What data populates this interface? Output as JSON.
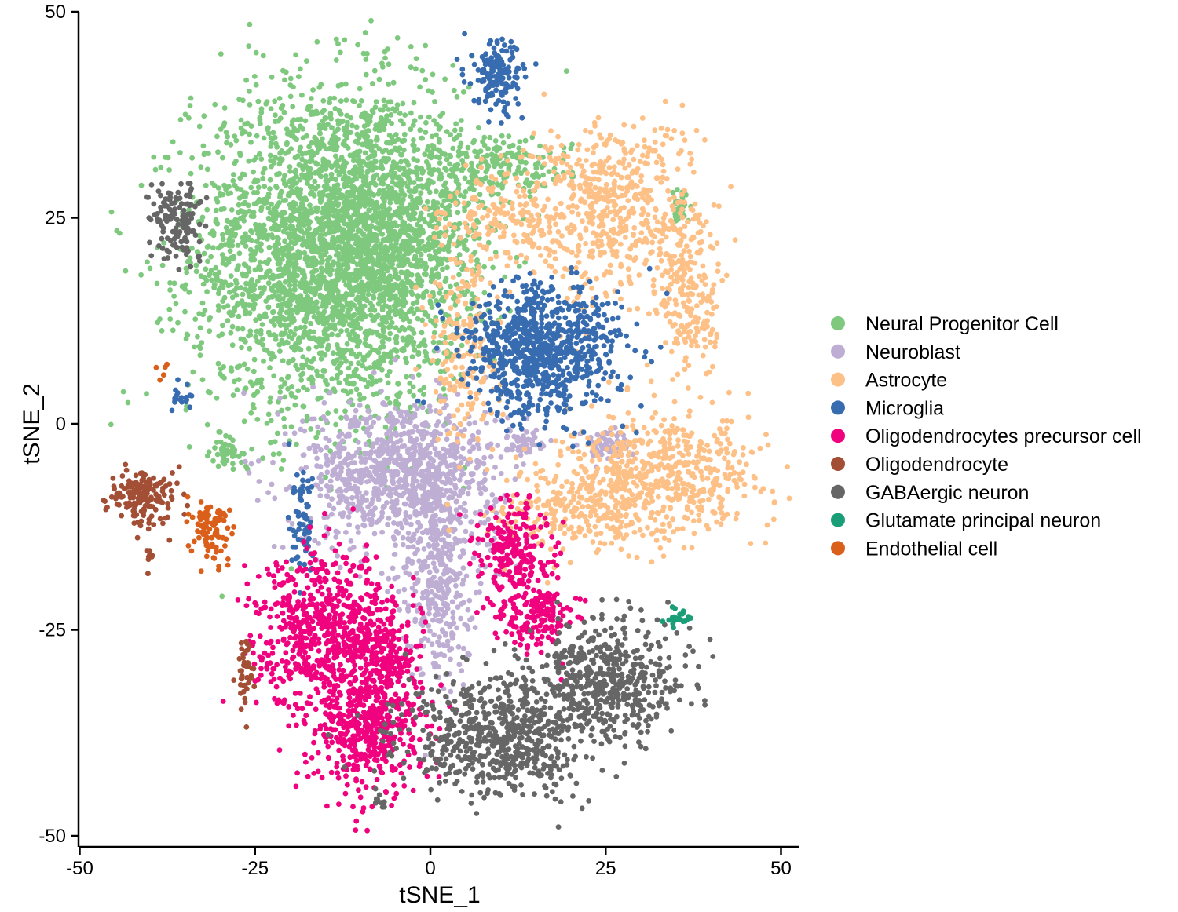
{
  "chart_data": {
    "type": "scatter",
    "title": "",
    "xlabel": "tSNE_1",
    "ylabel": "tSNE_2",
    "xlim": [
      -51,
      52
    ],
    "ylim": [
      -51,
      50
    ],
    "x_ticks": [
      -50,
      -25,
      0,
      25,
      50
    ],
    "y_ticks": [
      -50,
      -25,
      0,
      25,
      50
    ],
    "x_tick_labels": [
      "-50",
      "-25",
      "0",
      "25",
      "50"
    ],
    "y_tick_labels": [
      "-50",
      "-25",
      "0",
      "25",
      "50"
    ],
    "grid": false,
    "legend_position": "right",
    "series": [
      {
        "name": "Neural Progenitor Cell",
        "color": "#7FC97F",
        "clusters": [
          {
            "cx": -15,
            "cy": 21,
            "sx": 9.5,
            "sy": 10,
            "n": 2800
          },
          {
            "cx": -5,
            "cy": 22,
            "sx": 6,
            "sy": 8,
            "n": 900
          },
          {
            "cx": 10,
            "cy": 31,
            "sx": 5,
            "sy": 1.8,
            "n": 180
          },
          {
            "cx": -29,
            "cy": -3.5,
            "sx": 1.2,
            "sy": 0.8,
            "n": 40
          },
          {
            "cx": 35.5,
            "cy": 26,
            "sx": 0.5,
            "sy": 1,
            "n": 30
          }
        ]
      },
      {
        "name": "Neuroblast",
        "color": "#BEAED4",
        "clusters": [
          {
            "cx": -4,
            "cy": -6,
            "sx": 7,
            "sy": 4.5,
            "n": 1000
          },
          {
            "cx": 1,
            "cy": -19,
            "sx": 2.5,
            "sy": 6,
            "n": 350
          },
          {
            "cx": 13.5,
            "cy": -2,
            "sx": 1.4,
            "sy": 0.9,
            "n": 45
          },
          {
            "cx": 25,
            "cy": -2.5,
            "sx": 1.8,
            "sy": 0.9,
            "n": 60
          }
        ]
      },
      {
        "name": "Astrocyte",
        "color": "#FDC086",
        "clusters": [
          {
            "cx": 25,
            "cy": 26,
            "sx": 6,
            "sy": 5.5,
            "n": 550
          },
          {
            "cx": 37,
            "cy": 16,
            "sx": 2.5,
            "sy": 6,
            "n": 240
          },
          {
            "cx": 34,
            "cy": -6,
            "sx": 7,
            "sy": 3.5,
            "n": 500
          },
          {
            "cx": 22,
            "cy": -10,
            "sx": 6,
            "sy": 3,
            "n": 300
          },
          {
            "cx": 5,
            "cy": 10,
            "sx": 2.5,
            "sy": 7,
            "n": 200
          },
          {
            "cx": 10,
            "cy": 25,
            "sx": 4,
            "sy": 3,
            "n": 140
          }
        ]
      },
      {
        "name": "Microglia",
        "color": "#386CB0",
        "clusters": [
          {
            "cx": 16,
            "cy": 9,
            "sx": 5.5,
            "sy": 4,
            "n": 850
          },
          {
            "cx": 9.5,
            "cy": 42,
            "sx": 1.8,
            "sy": 2.2,
            "n": 160
          },
          {
            "cx": -18,
            "cy": -12,
            "sx": 1,
            "sy": 3,
            "n": 70
          },
          {
            "cx": -35,
            "cy": 3,
            "sx": 1,
            "sy": 0.8,
            "n": 20
          }
        ]
      },
      {
        "name": "Oligodendrocytes precursor cell",
        "color": "#F0027F",
        "clusters": [
          {
            "cx": -15,
            "cy": -25,
            "sx": 5,
            "sy": 4.5,
            "n": 650
          },
          {
            "cx": -9,
            "cy": -37,
            "sx": 4,
            "sy": 4,
            "n": 450
          },
          {
            "cx": -6,
            "cy": -29,
            "sx": 2.5,
            "sy": 4,
            "n": 200
          },
          {
            "cx": 12,
            "cy": -15,
            "sx": 2.5,
            "sy": 2.8,
            "n": 200
          },
          {
            "cx": 15,
            "cy": -23,
            "sx": 2.8,
            "sy": 2.2,
            "n": 180
          }
        ]
      },
      {
        "name": "Oligodendrocyte",
        "color": "#A34F35",
        "clusters": [
          {
            "cx": -41,
            "cy": -9,
            "sx": 2.4,
            "sy": 1.7,
            "n": 170
          },
          {
            "cx": -26.5,
            "cy": -30,
            "sx": 0.6,
            "sy": 2,
            "n": 40
          },
          {
            "cx": -40,
            "cy": -16,
            "sx": 0.3,
            "sy": 0.8,
            "n": 12
          }
        ]
      },
      {
        "name": "GABAergic neuron",
        "color": "#666666",
        "clusters": [
          {
            "cx": 10,
            "cy": -38,
            "sx": 7,
            "sy": 3.5,
            "n": 650
          },
          {
            "cx": 25,
            "cy": -31,
            "sx": 5.5,
            "sy": 3.5,
            "n": 500
          },
          {
            "cx": -36,
            "cy": 25,
            "sx": 1.8,
            "sy": 2.4,
            "n": 140
          },
          {
            "cx": -7,
            "cy": -46,
            "sx": 0.6,
            "sy": 0.5,
            "n": 10
          }
        ]
      },
      {
        "name": "Glutamate principal neuron",
        "color": "#1A9E77",
        "clusters": [
          {
            "cx": 35.5,
            "cy": -23.5,
            "sx": 0.9,
            "sy": 0.7,
            "n": 25
          }
        ]
      },
      {
        "name": "Endothelial cell",
        "color": "#D95F1A",
        "clusters": [
          {
            "cx": -31,
            "cy": -13,
            "sx": 1.4,
            "sy": 2,
            "n": 90
          },
          {
            "cx": -38,
            "cy": 6,
            "sx": 0.3,
            "sy": 0.6,
            "n": 5
          }
        ]
      }
    ]
  }
}
